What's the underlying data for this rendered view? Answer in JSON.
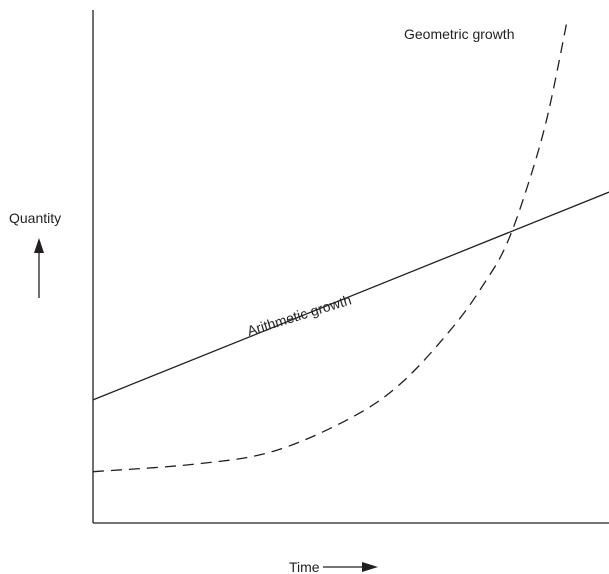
{
  "chart_data": {
    "type": "line",
    "title": "",
    "xlabel": "Time",
    "ylabel": "Quantity",
    "xlim": [
      0,
      1
    ],
    "ylim": [
      0,
      1
    ],
    "grid": false,
    "legend": "none",
    "series": [
      {
        "name": "Arithmetic growth",
        "style": "solid",
        "color": "#231f20",
        "x": [
          0,
          1
        ],
        "y": [
          0.24,
          0.645
        ]
      },
      {
        "name": "Geometric growth",
        "style": "dashed",
        "color": "#231f20",
        "x": [
          0,
          0.2,
          0.35,
          0.5,
          0.6,
          0.7,
          0.76,
          0.8,
          0.84,
          0.88,
          0.92
        ],
        "y": [
          0.1,
          0.115,
          0.14,
          0.205,
          0.275,
          0.385,
          0.47,
          0.54,
          0.65,
          0.79,
          0.985
        ]
      }
    ]
  }
}
